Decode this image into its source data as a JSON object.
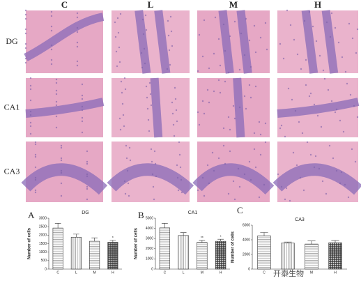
{
  "figure": {
    "columns": [
      "C",
      "L",
      "M",
      "H"
    ],
    "rows": [
      "DG",
      "CA1",
      "CA3"
    ],
    "panels": [
      "A",
      "B",
      "C"
    ],
    "watermark": "开泰生物"
  },
  "chart_data": [
    {
      "type": "bar",
      "title": "DG",
      "y_label": "Number of cells",
      "categories": [
        "C",
        "L",
        "M",
        "H"
      ],
      "values": [
        2420,
        1880,
        1640,
        1580
      ],
      "errors": [
        280,
        180,
        200,
        120
      ],
      "significance": [
        null,
        null,
        null,
        "*"
      ],
      "patterns": [
        "horizontal",
        "vertical",
        "horizontal",
        "crosshatch"
      ],
      "ylim": [
        0,
        3000
      ],
      "yticks": [
        0,
        500,
        1000,
        1500,
        2000,
        2500,
        3000
      ]
    },
    {
      "type": "bar",
      "title": "CA1",
      "y_label": "Number of cells",
      "categories": [
        "C",
        "L",
        "M",
        "H"
      ],
      "values": [
        4050,
        3300,
        2620,
        2730
      ],
      "errors": [
        450,
        280,
        200,
        200
      ],
      "significance": [
        null,
        null,
        "**",
        "*"
      ],
      "patterns": [
        "horizontal",
        "vertical",
        "horizontal",
        "crosshatch"
      ],
      "ylim": [
        0,
        5000
      ],
      "yticks": [
        0,
        1000,
        2000,
        3000,
        4000,
        5000
      ]
    },
    {
      "type": "bar",
      "title": "CA3",
      "y_label": "Number of cells",
      "categories": [
        "C",
        "L",
        "M",
        "H"
      ],
      "values": [
        4550,
        3550,
        3420,
        3600
      ],
      "errors": [
        450,
        150,
        420,
        300
      ],
      "significance": [
        null,
        null,
        null,
        null
      ],
      "patterns": [
        "horizontal",
        "vertical",
        "horizontal",
        "crosshatch"
      ],
      "ylim": [
        0,
        6000
      ],
      "yticks": [
        0,
        2000,
        4000,
        6000
      ]
    }
  ]
}
